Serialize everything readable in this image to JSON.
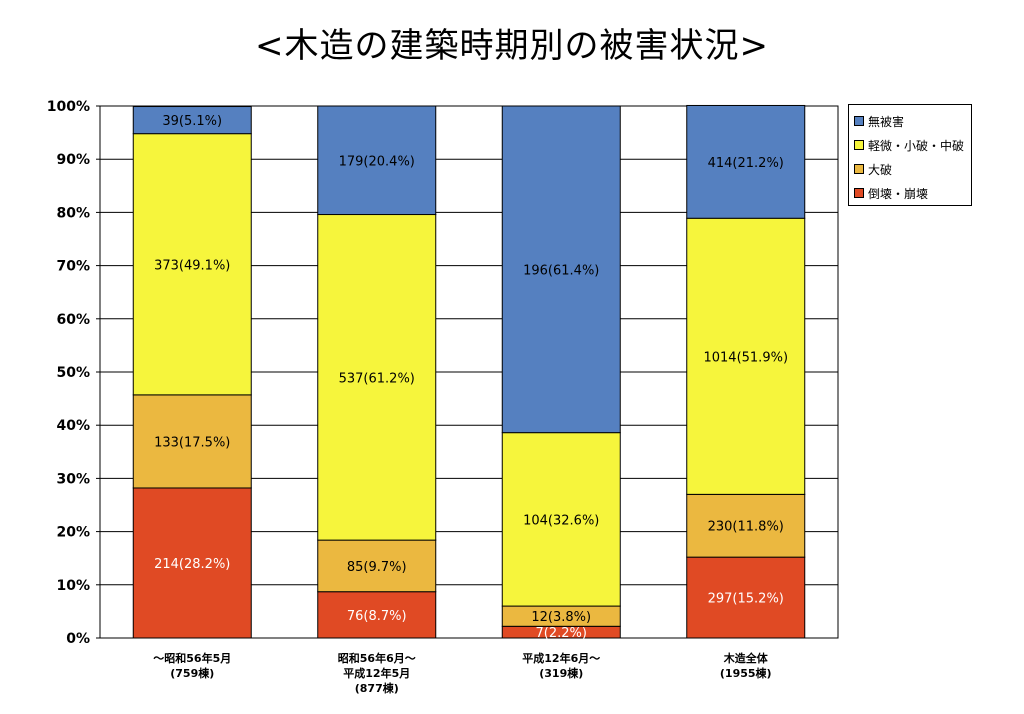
{
  "chart_data": {
    "type": "bar",
    "stacked": true,
    "normalized": true,
    "title": "<木造の建築時期別の被害状況>",
    "ylim": [
      0,
      100
    ],
    "yticks": [
      "0%",
      "10%",
      "20%",
      "30%",
      "40%",
      "50%",
      "60%",
      "70%",
      "80%",
      "90%",
      "100%"
    ],
    "categories": [
      [
        "～昭和56年5月",
        "(759棟)"
      ],
      [
        "昭和56年6月～",
        "平成12年5月",
        "(877棟)"
      ],
      [
        "平成12年6月～",
        "(319棟)"
      ],
      [
        "木造全体",
        "(1955棟)"
      ]
    ],
    "legend_position": "right",
    "series": [
      {
        "name": "倒壊・崩壊",
        "color": "#e04a24",
        "label_color": "#ffffff",
        "values": [
          214,
          76,
          7,
          297
        ],
        "percents": [
          28.2,
          8.7,
          2.2,
          15.2
        ],
        "labels": [
          "214(28.2%)",
          "76(8.7%)",
          "7(2.2%)",
          "297(15.2%)"
        ]
      },
      {
        "name": "大破",
        "color": "#ebb840",
        "label_color": "#000000",
        "values": [
          133,
          85,
          12,
          230
        ],
        "percents": [
          17.5,
          9.7,
          3.8,
          11.8
        ],
        "labels": [
          "133(17.5%)",
          "85(9.7%)",
          "12(3.8%)",
          "230(11.8%)"
        ]
      },
      {
        "name": "軽微・小破・中破",
        "color": "#f6f53c",
        "label_color": "#000000",
        "values": [
          373,
          537,
          104,
          1014
        ],
        "percents": [
          49.1,
          61.2,
          32.6,
          51.9
        ],
        "labels": [
          "373(49.1%)",
          "537(61.2%)",
          "104(32.6%)",
          "1014(51.9%)"
        ]
      },
      {
        "name": "無被害",
        "color": "#5580c0",
        "label_color": "#000000",
        "values": [
          39,
          179,
          196,
          414
        ],
        "percents": [
          5.1,
          20.4,
          61.4,
          21.2
        ],
        "labels": [
          "39(5.1%)",
          "179(20.4%)",
          "196(61.4%)",
          "414(21.2%)"
        ]
      }
    ],
    "legend_order": [
      "無被害",
      "軽微・小破・中破",
      "大破",
      "倒壊・崩壊"
    ]
  }
}
